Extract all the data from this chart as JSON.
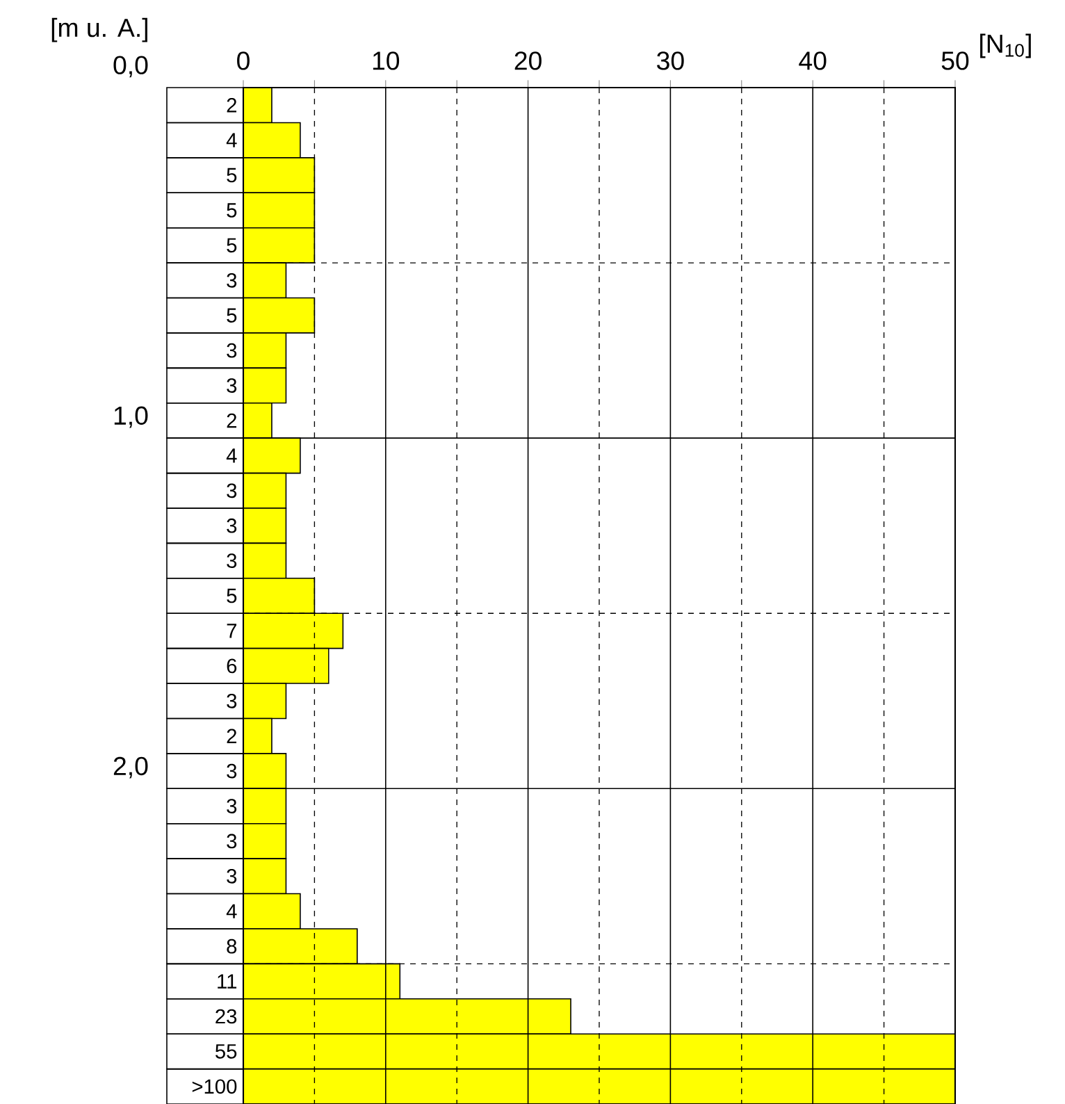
{
  "chart_data": {
    "type": "bar",
    "orientation": "horizontal",
    "xlabel": "[N$_{10}$]",
    "ylabel": "[m u. A.]",
    "x": [
      0.05,
      0.15,
      0.25,
      0.35,
      0.45,
      0.55,
      0.65,
      0.75,
      0.85,
      0.95,
      1.05,
      1.15,
      1.25,
      1.35,
      1.45,
      1.55,
      1.65,
      1.75,
      1.85,
      1.95,
      2.05,
      2.15,
      2.25,
      2.35,
      2.45,
      2.55,
      2.65,
      2.75,
      2.85
    ],
    "values": [
      2,
      4,
      5,
      5,
      5,
      3,
      5,
      3,
      3,
      2,
      4,
      3,
      3,
      3,
      5,
      7,
      6,
      3,
      2,
      3,
      3,
      3,
      3,
      4,
      8,
      11,
      23,
      50,
      50
    ],
    "annotations": [
      "55",
      ">100"
    ],
    "value_labels": [
      "2",
      "4",
      "5",
      "5",
      "5",
      "3",
      "5",
      "3",
      "3",
      "2",
      "4",
      "3",
      "3",
      "3",
      "5",
      "7",
      "6",
      "3",
      "2",
      "3",
      "3",
      "3",
      "3",
      "4",
      "8",
      "11",
      "23",
      null,
      null
    ],
    "color": "#ffff00",
    "xlim": [
      0,
      50
    ],
    "xticks": [
      0,
      {
        "value": 5,
        "label": null
      },
      10,
      {
        "value": 15,
        "label": null
      },
      20,
      {
        "value": 25,
        "label": null
      },
      30,
      {
        "value": 35,
        "label": null
      },
      40,
      {
        "value": 45,
        "label": null
      },
      50
    ],
    "ylim": [
      2.9,
      0
    ],
    "yticks": [
      {
        "value": 0,
        "label": "0,0"
      },
      {
        "value": 0.5,
        "label": null
      },
      {
        "value": 1,
        "label": "1,0"
      },
      {
        "value": 1.5,
        "label": null
      },
      {
        "value": 2,
        "label": "2,0"
      },
      {
        "value": 2.5,
        "label": null
      }
    ],
    "grid": true
  }
}
